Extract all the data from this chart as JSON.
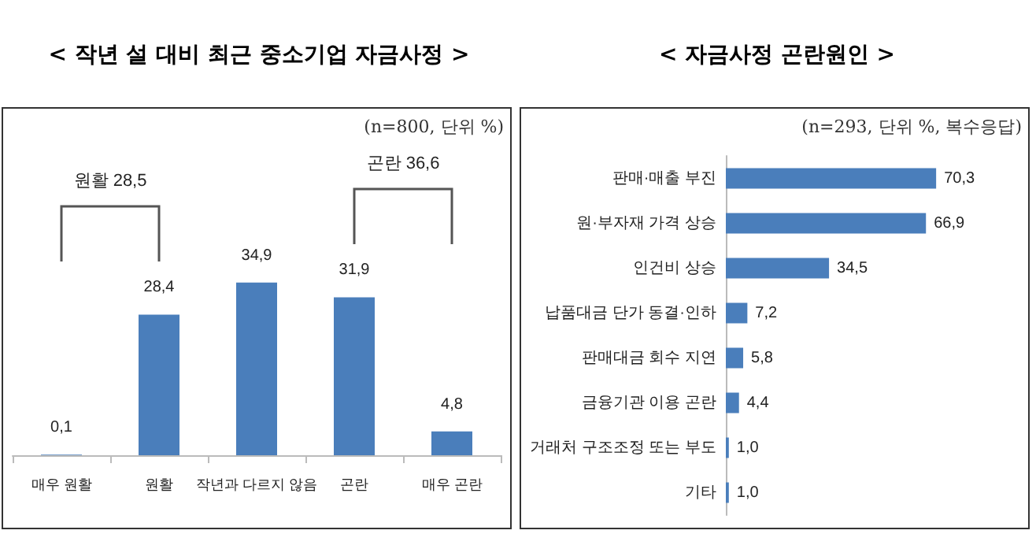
{
  "chart_data": [
    {
      "type": "bar",
      "title": "< 작년 설 대비 최근 중소기업 자금사정 >",
      "subtitle": "(n=800, 단위 %)",
      "categories": [
        "매우 원활",
        "원활",
        "작년과 다르지 않음",
        "곤란",
        "매우 곤란"
      ],
      "values": [
        0.1,
        28.4,
        34.9,
        31.9,
        4.8
      ],
      "value_labels": [
        "0,1",
        "28,4",
        "34,9",
        "31,9",
        "4,8"
      ],
      "color": "#4a7ebb",
      "annotations": [
        "원활 28,5",
        "곤란 36,6"
      ],
      "tick_labels": "x"
    },
    {
      "type": "bar",
      "orientation": "horizontal",
      "title": "< 자금사정 곤란원인 >",
      "subtitle": "(n=293, 단위 %, 복수응답)",
      "categories": [
        "판매·매출 부진",
        "원·부자재 가격 상승",
        "인건비 상승",
        "납품대금 단가 동결·인하",
        "판매대금 회수 지연",
        "금융기관 이용 곤란",
        "거래처 구조조정 또는 부도",
        "기타"
      ],
      "values": [
        70.3,
        66.9,
        34.5,
        7.2,
        5.8,
        4.4,
        1.0,
        1.0
      ],
      "value_labels": [
        "70,3",
        "66,9",
        "34,5",
        "7,2",
        "5,8",
        "4,4",
        "1,0",
        "1,0"
      ],
      "color": "#4a7ebb",
      "tick_labels": "y"
    }
  ]
}
